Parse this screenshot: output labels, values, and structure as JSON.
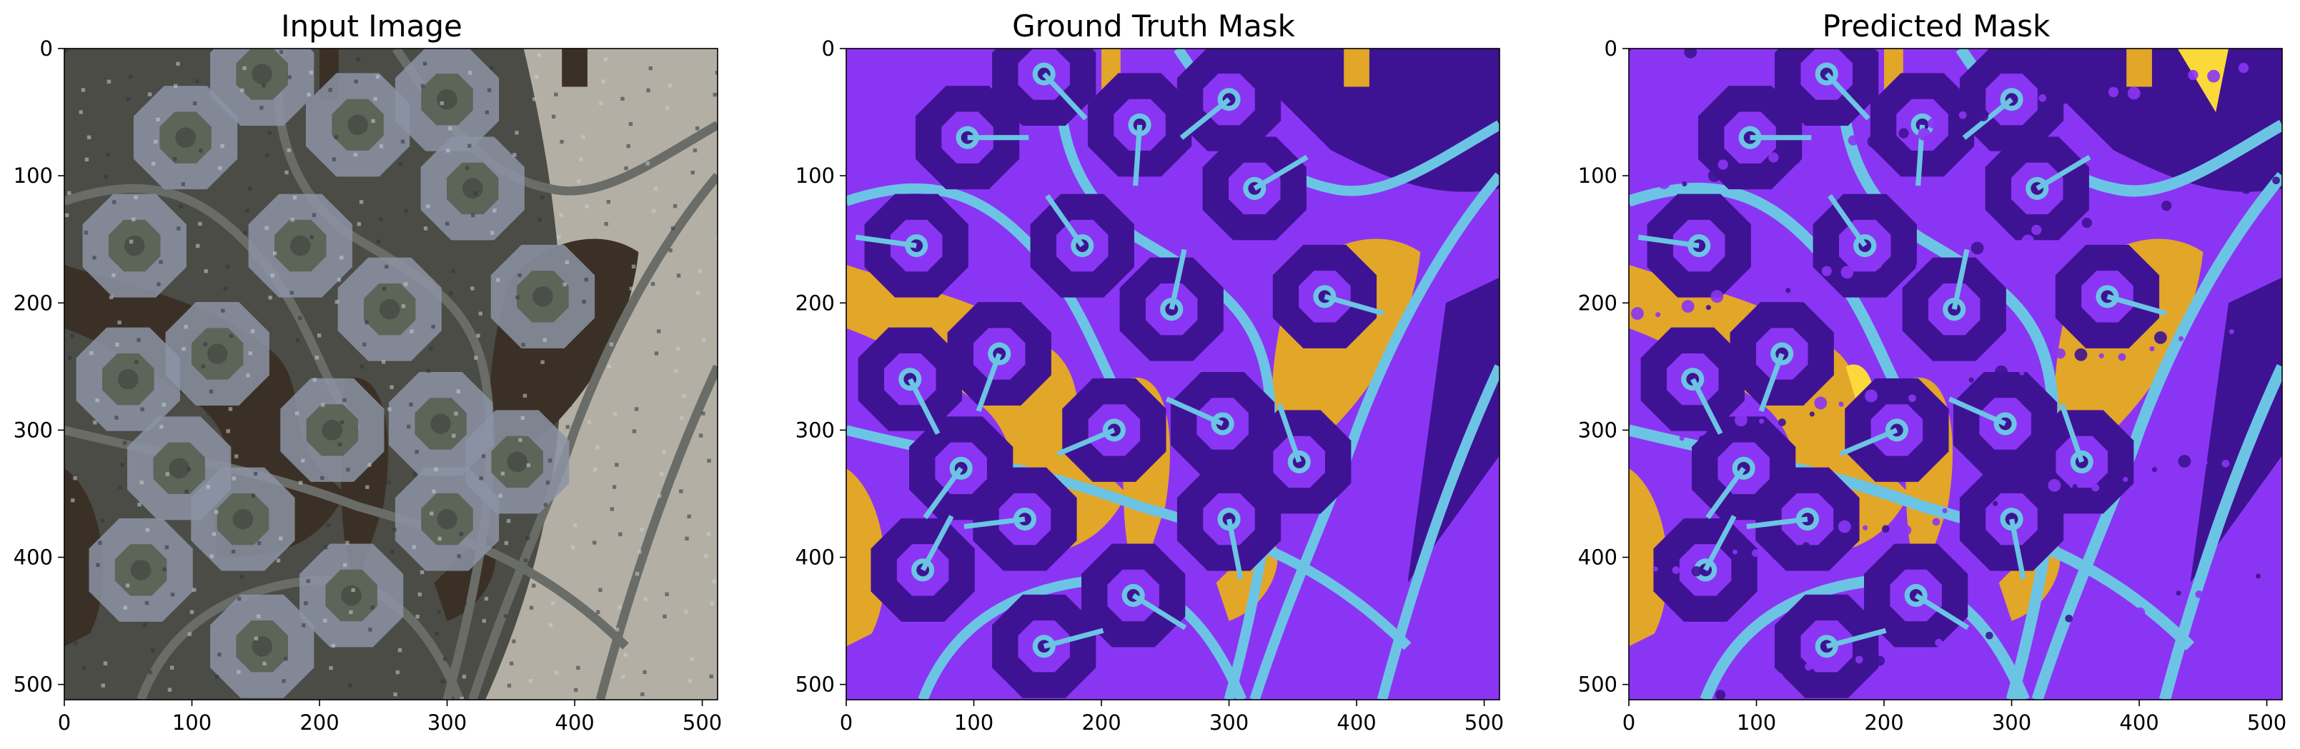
{
  "figure": {
    "panels": [
      {
        "id": "input",
        "title": "Input Image",
        "kind": "aerial-photo",
        "xticks": [
          "0",
          "100",
          "200",
          "300",
          "400",
          "500"
        ],
        "yticks": [
          "0",
          "100",
          "200",
          "300",
          "400",
          "500"
        ],
        "xlim": [
          0,
          512
        ],
        "ylim": [
          512,
          0
        ]
      },
      {
        "id": "ground-truth",
        "title": "Ground Truth Mask",
        "kind": "segmentation-mask",
        "xticks": [
          "0",
          "100",
          "200",
          "300",
          "400",
          "500"
        ],
        "yticks": [
          "0",
          "100",
          "200",
          "300",
          "400",
          "500"
        ],
        "xlim": [
          0,
          512
        ],
        "ylim": [
          512,
          0
        ]
      },
      {
        "id": "predicted",
        "title": "Predicted Mask",
        "kind": "segmentation-mask",
        "xticks": [
          "0",
          "100",
          "200",
          "300",
          "400",
          "500"
        ],
        "yticks": [
          "0",
          "100",
          "200",
          "300",
          "400",
          "500"
        ],
        "xlim": [
          0,
          512
        ],
        "ylim": [
          512,
          0
        ]
      }
    ],
    "colors": {
      "mask_background": "#8b35f4",
      "mask_building": "#3e1393",
      "mask_road": "#6cc4e4",
      "mask_water": "#e2a628",
      "mask_water_bright": "#fbd93a",
      "photo_ground": "#4a4c45",
      "photo_water": "#3b3025",
      "photo_roof": "#8c93a4",
      "photo_road": "#6a6c68",
      "photo_sand": "#b4afa4"
    }
  }
}
